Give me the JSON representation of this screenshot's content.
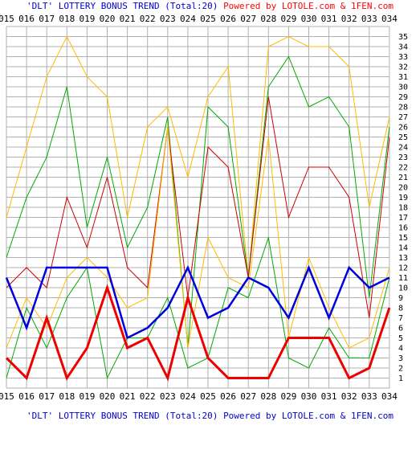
{
  "header": {
    "title": "'DLT' LOTTERY BONUS TREND (Total:20)",
    "powered": "Powered by LOTOLE.com & 1FEN.com"
  },
  "colors": {
    "background": "#ffffff",
    "grid": "#b0b0b0",
    "axis_text": "#000000",
    "header_title": "#0000cc",
    "header_powered_top": "#ff0000",
    "header_powered_bottom": "#0000cc"
  },
  "chart_data": {
    "type": "line",
    "title": "'DLT' LOTTERY BONUS TREND (Total:20)",
    "categories": [
      "015",
      "016",
      "017",
      "018",
      "019",
      "020",
      "021",
      "022",
      "023",
      "024",
      "025",
      "026",
      "027",
      "028",
      "029",
      "030",
      "031",
      "032",
      "033",
      "034"
    ],
    "y_ticks": [
      1,
      2,
      3,
      4,
      5,
      6,
      7,
      8,
      9,
      10,
      11,
      12,
      13,
      14,
      15,
      16,
      17,
      18,
      19,
      20,
      21,
      22,
      23,
      24,
      25,
      26,
      27,
      28,
      29,
      30,
      31,
      32,
      33,
      34,
      35
    ],
    "ylim": [
      0,
      36
    ],
    "grid": true,
    "series": [
      {
        "color": "#ffbb00",
        "stroke_width": 1,
        "values": [
          17,
          24,
          31,
          35,
          31,
          29,
          17,
          26,
          28,
          21,
          29,
          32,
          11,
          34,
          35,
          34,
          34,
          32,
          18,
          27
        ]
      },
      {
        "color": "#00aa00",
        "stroke_width": 1,
        "values": [
          13,
          19,
          23,
          30,
          16,
          23,
          14,
          18,
          27,
          4,
          28,
          26,
          11,
          30,
          33,
          28,
          29,
          26,
          9,
          26
        ]
      },
      {
        "color": "#cc0000",
        "stroke_width": 1,
        "values": [
          10,
          12,
          10,
          19,
          14,
          21,
          12,
          10,
          26,
          9,
          24,
          22,
          11,
          29,
          17,
          22,
          22,
          19,
          7,
          25
        ]
      },
      {
        "color": "#ffbb00",
        "stroke_width": 1,
        "values": [
          4,
          9,
          6,
          11,
          13,
          11,
          8,
          9,
          26,
          4,
          15,
          11,
          10,
          25,
          5,
          13,
          8,
          4,
          5,
          12
        ]
      },
      {
        "color": "#00aa00",
        "stroke_width": 1,
        "values": [
          1,
          8,
          4,
          9,
          12,
          1,
          5,
          5,
          9,
          2,
          3,
          10,
          9,
          15,
          3,
          2,
          6,
          3,
          3,
          11
        ]
      },
      {
        "color": "#0000dd",
        "stroke_width": 2.5,
        "values": [
          11,
          6,
          12,
          12,
          12,
          12,
          5,
          6,
          8,
          12,
          7,
          8,
          11,
          10,
          7,
          12,
          7,
          12,
          10,
          11
        ]
      },
      {
        "color": "#ee0000",
        "stroke_width": 3,
        "values": [
          3,
          1,
          7,
          1,
          4,
          10,
          4,
          5,
          1,
          9,
          3,
          1,
          1,
          1,
          5,
          5,
          5,
          1,
          2,
          8
        ]
      }
    ]
  }
}
